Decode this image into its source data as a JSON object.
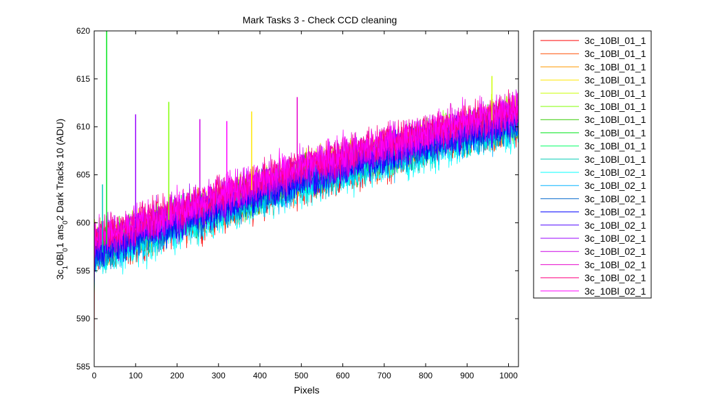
{
  "chart_data": {
    "type": "line",
    "title": "Mark Tasks 3 - Check CCD cleaning",
    "xlabel": "Pixels",
    "ylabel_parts": [
      "3c",
      "1",
      "0Bl",
      "0",
      "1 ans",
      "0",
      "2 Dark Tracks 10 (ADU)"
    ],
    "xlim": [
      0,
      1024
    ],
    "ylim": [
      585,
      620
    ],
    "x_ticks": [
      0,
      100,
      200,
      300,
      400,
      500,
      600,
      700,
      800,
      900,
      1000
    ],
    "y_ticks": [
      585,
      590,
      595,
      600,
      605,
      610,
      615,
      620
    ],
    "grid": false,
    "legend_position": "outside-right",
    "trend": {
      "x": [
        0,
        100,
        200,
        300,
        400,
        500,
        600,
        700,
        800,
        900,
        1024
      ],
      "y": [
        597.5,
        599.0,
        600.5,
        602.0,
        603.5,
        605.0,
        606.2,
        607.4,
        608.6,
        609.8,
        611.0
      ]
    },
    "series": [
      {
        "name": "3c_10Bl_01_1",
        "color": "#ff0000",
        "offset": -1.2
      },
      {
        "name": "3c_10Bl_01_1",
        "color": "#ff4d00",
        "offset": -0.8
      },
      {
        "name": "3c_10Bl_01_1",
        "color": "#ff9900",
        "offset": -0.4
      },
      {
        "name": "3c_10Bl_01_1",
        "color": "#ffe600",
        "offset": 0.2
      },
      {
        "name": "3c_10Bl_01_1",
        "color": "#ccff00",
        "offset": 0.3
      },
      {
        "name": "3c_10Bl_01_1",
        "color": "#80ff00",
        "offset": 0.1
      },
      {
        "name": "3c_10Bl_01_1",
        "color": "#33cc00",
        "offset": 0.0
      },
      {
        "name": "3c_10Bl_01_1",
        "color": "#00e61a",
        "offset": -0.2
      },
      {
        "name": "3c_10Bl_01_1",
        "color": "#00ff66",
        "offset": -0.6
      },
      {
        "name": "3c_10Bl_01_1",
        "color": "#00ccb3",
        "offset": -0.9
      },
      {
        "name": "3c_10Bl_02_1",
        "color": "#00ffff",
        "offset": -1.6
      },
      {
        "name": "3c_10Bl_02_1",
        "color": "#00b3ff",
        "offset": -1.0
      },
      {
        "name": "3c_10Bl_02_1",
        "color": "#0066cc",
        "offset": -0.7
      },
      {
        "name": "3c_10Bl_02_1",
        "color": "#0000ff",
        "offset": -0.5
      },
      {
        "name": "3c_10Bl_02_1",
        "color": "#4d00ff",
        "offset": -0.2
      },
      {
        "name": "3c_10Bl_02_1",
        "color": "#9900ff",
        "offset": 0.4
      },
      {
        "name": "3c_10Bl_02_1",
        "color": "#cc00e6",
        "offset": 0.6
      },
      {
        "name": "3c_10Bl_02_1",
        "color": "#e600cc",
        "offset": 0.8
      },
      {
        "name": "3c_10Bl_02_1",
        "color": "#ff0080",
        "offset": 1.0
      },
      {
        "name": "3c_10Bl_02_1",
        "color": "#ff00ff",
        "offset": 0.9
      }
    ],
    "notable_spikes": [
      {
        "series": 7,
        "x": 30,
        "y": 620
      },
      {
        "series": 9,
        "x": 20,
        "y": 604
      },
      {
        "series": 15,
        "x": 100,
        "y": 611.3
      },
      {
        "series": 5,
        "x": 180,
        "y": 612.6
      },
      {
        "series": 16,
        "x": 255,
        "y": 610.8
      },
      {
        "series": 19,
        "x": 320,
        "y": 610.6
      },
      {
        "series": 3,
        "x": 380,
        "y": 611.6
      },
      {
        "series": 17,
        "x": 490,
        "y": 613.1
      },
      {
        "series": 4,
        "x": 960,
        "y": 615.3
      }
    ]
  }
}
